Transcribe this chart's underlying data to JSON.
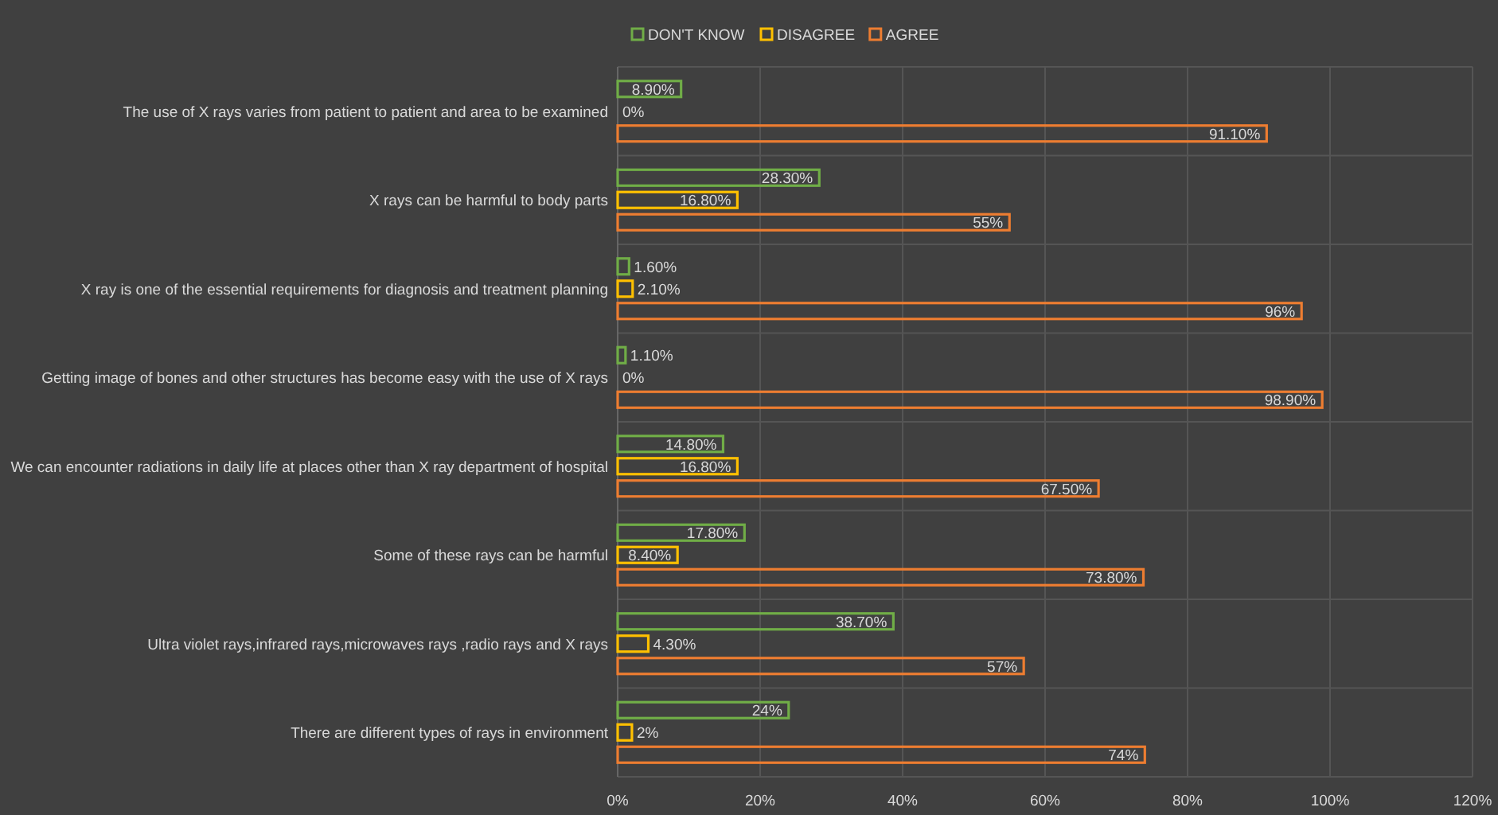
{
  "chart_data": {
    "type": "bar",
    "orientation": "horizontal",
    "categories": [
      "The use of X rays varies from patient to patient and area to be examined",
      "X rays can be harmful to body parts",
      "X ray is one of the essential requirements for diagnosis and treatment planning",
      "Getting image of bones and other structures has become easy with the use of X rays",
      "We can encounter radiations in daily life at places other than X ray department of hospital",
      "Some of these rays can be harmful",
      "Ultra violet rays,infrared rays,microwaves rays ,radio rays and X rays",
      "There are different types of rays in environment"
    ],
    "series": [
      {
        "name": "DON'T KNOW",
        "color": "#70ad47",
        "values": [
          8.9,
          28.3,
          1.6,
          1.1,
          14.8,
          17.8,
          38.7,
          24
        ],
        "value_labels": [
          "8.90%",
          "28.30%",
          "1.60%",
          "1.10%",
          "14.80%",
          "17.80%",
          "38.70%",
          "24%"
        ]
      },
      {
        "name": "DISAGREE",
        "color": "#ffc000",
        "values": [
          0,
          16.8,
          2.1,
          0,
          16.8,
          8.4,
          4.3,
          2
        ],
        "value_labels": [
          "0%",
          "16.80%",
          "2.10%",
          "0%",
          "16.80%",
          "8.40%",
          "4.30%",
          "2%"
        ]
      },
      {
        "name": "AGREE",
        "color": "#ed7d31",
        "values": [
          91.1,
          55,
          96,
          98.9,
          67.5,
          73.8,
          57,
          74
        ],
        "value_labels": [
          "91.10%",
          "55%",
          "96%",
          "98.90%",
          "67.50%",
          "73.80%",
          "57%",
          "74%"
        ]
      }
    ],
    "xlim": [
      0,
      120
    ],
    "xticks": [
      {
        "value": 0,
        "label": "0%"
      },
      {
        "value": 20,
        "label": "20%"
      },
      {
        "value": 40,
        "label": "40%"
      },
      {
        "value": 60,
        "label": "60%"
      },
      {
        "value": 80,
        "label": "80%"
      },
      {
        "value": 100,
        "label": "100%"
      },
      {
        "value": 120,
        "label": "120%"
      }
    ],
    "grid": true,
    "legend": "top"
  }
}
